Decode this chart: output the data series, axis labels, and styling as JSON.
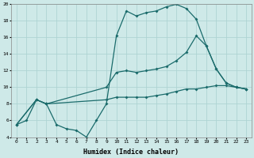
{
  "background_color": "#cee9e8",
  "grid_color": "#aed4d3",
  "line_color": "#1a6b6b",
  "xlabel": "Humidex (Indice chaleur)",
  "xlim": [
    -0.5,
    23.5
  ],
  "ylim": [
    4,
    20
  ],
  "yticks": [
    4,
    6,
    8,
    10,
    12,
    14,
    16,
    18,
    20
  ],
  "xticks": [
    0,
    1,
    2,
    3,
    4,
    5,
    6,
    7,
    8,
    9,
    10,
    11,
    12,
    13,
    14,
    15,
    16,
    17,
    18,
    19,
    20,
    21,
    22,
    23
  ],
  "line1_x": [
    0,
    1,
    2,
    3,
    4,
    5,
    6,
    7,
    8,
    9,
    10,
    11,
    12,
    13,
    14,
    15,
    16,
    17,
    18,
    19,
    20,
    21,
    22,
    23
  ],
  "line1_y": [
    5.5,
    6.0,
    8.5,
    8.0,
    5.5,
    5.0,
    4.8,
    4.0,
    6.0,
    8.0,
    16.2,
    19.2,
    18.6,
    19.0,
    19.2,
    19.7,
    20.0,
    19.5,
    18.2,
    15.0,
    12.2,
    10.5,
    10.0,
    9.8
  ],
  "line2_x": [
    0,
    2,
    3,
    9,
    10,
    11,
    12,
    13,
    14,
    15,
    16,
    17,
    18,
    19,
    20,
    21,
    22,
    23
  ],
  "line2_y": [
    5.5,
    8.5,
    8.0,
    10.0,
    11.8,
    12.0,
    11.8,
    12.0,
    12.2,
    12.5,
    13.2,
    14.2,
    16.2,
    15.0,
    12.2,
    10.5,
    10.0,
    9.8
  ],
  "line3_x": [
    0,
    2,
    3,
    9,
    10,
    11,
    12,
    13,
    14,
    15,
    16,
    17,
    18,
    19,
    20,
    21,
    22,
    23
  ],
  "line3_y": [
    5.5,
    8.5,
    8.0,
    8.5,
    8.8,
    8.8,
    8.8,
    8.8,
    9.0,
    9.2,
    9.5,
    9.8,
    9.8,
    10.0,
    10.2,
    10.2,
    10.0,
    9.8
  ]
}
